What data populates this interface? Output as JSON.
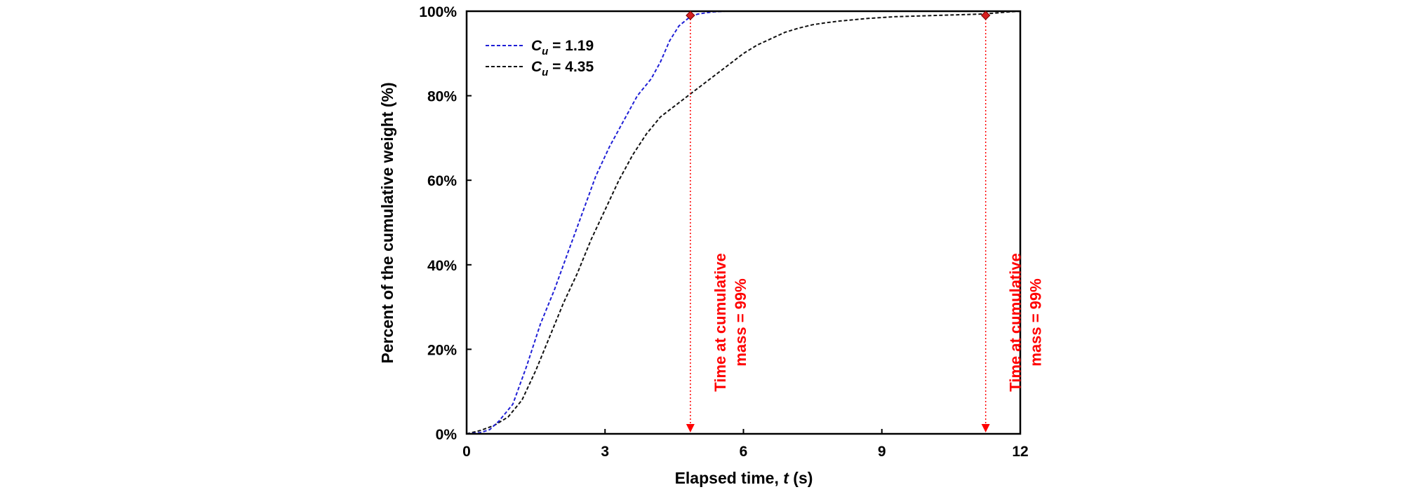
{
  "chart_data": {
    "type": "line",
    "title": "",
    "xlabel": "Elapsed time, t (s)",
    "xlabel_prefix": "Elapsed time, ",
    "xlabel_var": "t",
    "xlabel_unit": " (s)",
    "ylabel": "Percent of the cumulative weight (%)",
    "xlim": [
      0,
      12
    ],
    "ylim": [
      0,
      100
    ],
    "xticks": [
      0,
      3,
      6,
      9,
      12
    ],
    "yticks": [
      0,
      20,
      40,
      60,
      80,
      100
    ],
    "ytick_labels": [
      "0%",
      "20%",
      "40%",
      "60%",
      "80%",
      "100%"
    ],
    "grid": false,
    "legend_position": "top-left",
    "series": [
      {
        "name": "Cu = 1.19",
        "legend_symbol": "C",
        "legend_sub": "u",
        "legend_value": " = 1.19",
        "color": "#1f1fd6",
        "x": [
          0,
          0.3,
          0.5,
          0.7,
          1.0,
          1.3,
          1.6,
          1.9,
          2.2,
          2.5,
          2.8,
          3.1,
          3.4,
          3.7,
          4.0,
          4.2,
          4.4,
          4.6,
          4.8,
          5.0,
          5.3,
          5.6,
          6.0,
          7.0,
          9.0,
          12.0
        ],
        "y": [
          0,
          0.3,
          1,
          3,
          7,
          16,
          26,
          34,
          43,
          52,
          61,
          68,
          74,
          80,
          84,
          88,
          93,
          96.5,
          98.3,
          99.3,
          99.8,
          100,
          100,
          100,
          100,
          100
        ]
      },
      {
        "name": "Cu = 4.35",
        "legend_symbol": "C",
        "legend_sub": "u",
        "legend_value": " = 4.35",
        "color": "#111111",
        "x": [
          0,
          0.3,
          0.6,
          0.9,
          1.2,
          1.5,
          1.8,
          2.1,
          2.4,
          2.7,
          3.0,
          3.3,
          3.6,
          3.9,
          4.2,
          4.5,
          4.8,
          5.1,
          5.4,
          5.7,
          6.0,
          6.3,
          6.6,
          6.9,
          7.2,
          7.5,
          7.8,
          8.1,
          8.4,
          8.7,
          9.0,
          9.3,
          9.6,
          9.9,
          10.2,
          10.5,
          10.8,
          11.1,
          11.4,
          11.7,
          12.0
        ],
        "y": [
          0,
          0.8,
          2,
          4,
          8,
          15,
          23,
          31,
          38,
          46,
          53,
          60,
          66,
          71,
          75,
          77.5,
          80,
          82.5,
          85,
          87.5,
          90,
          92,
          93.5,
          95,
          96,
          96.8,
          97.3,
          97.7,
          98,
          98.3,
          98.5,
          98.7,
          98.8,
          98.9,
          99,
          99.1,
          99.2,
          99.3,
          99.5,
          99.8,
          100
        ]
      }
    ],
    "markers": [
      {
        "x": 4.85,
        "y": 99,
        "color": "#d62020"
      },
      {
        "x": 11.25,
        "y": 99,
        "color": "#d62020"
      }
    ],
    "annotations": [
      {
        "x": 4.85,
        "line1": "Time at cumulative",
        "line2": "mass = 99%",
        "color": "#ff0000"
      },
      {
        "x": 11.25,
        "line1": "Time at cumulative",
        "line2": "mass = 99%",
        "color": "#ff0000"
      }
    ]
  }
}
